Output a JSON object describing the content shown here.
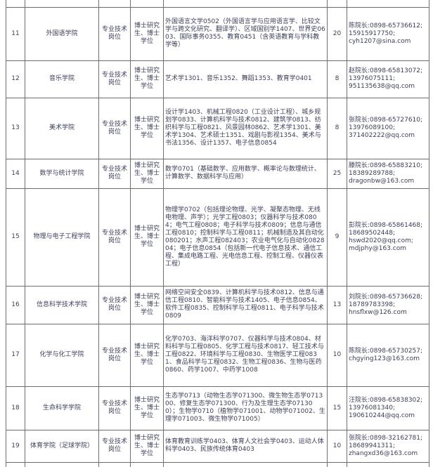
{
  "colors": {
    "border": "#6f6f6f",
    "text": "#3b3f58"
  },
  "table": {
    "rows": [
      {
        "no": "11",
        "college": "外国语学院",
        "position": "专业技术岗位",
        "degree": "博士研究生、博士学位",
        "majors": "外国语言文学0502（外国语言学与应用语言学、比较文学与跨文化研究、翻译学）、区域国别学1407、世界史0603、国际事务0355、教育0451（含英语教育与学科教学等）",
        "count": "20",
        "contact": "陈院长:0898-65736612;\n15915917750;\ncyh1207@sina.com"
      },
      {
        "no": "12",
        "college": "音乐学院",
        "position": "专业技术岗位",
        "degree": "博士研究生、博士学位",
        "majors": "艺术学1301、音乐1352、舞蹈1353、教育学0401",
        "count": "8",
        "contact": "赵院长:0898-65813072;\n13976075111;\n951135638@qq.com"
      },
      {
        "no": "13",
        "college": "美术学院",
        "position": "专业技术岗位",
        "degree": "博士研究生、博士学位",
        "majors": "设计学1403、机械工程0820（工业设计工程）、城乡规划学0833、计算机科学与技术0812、建筑学0813、纺织科学与工程0821、风景园林0862、艺术学1301、美术学1304、艺术硕士1351、戏剧与影视1354、美术与书法1356、设计1357、电子信息0854",
        "count": "8",
        "contact": "张院长:0898-65727610;\n13976089100;\n371402222@qq.com"
      },
      {
        "no": "14",
        "college": "数学与统计学院",
        "position": "专业技术岗位",
        "degree": "博士研究生、博士学位",
        "majors": "数学0701（基础数学、应用数学、概率论与数理统计、计算数学、数据科学与应用）",
        "count": "25",
        "contact": "滕院长:0898-65883210;\n18389289788;\ndragonbw@163.com"
      },
      {
        "no": "15",
        "college": "物理与电子工程学院",
        "position": "专业技术岗位",
        "degree": "博士研究生、博士学位",
        "majors": "物理学0702（包括理论物理、光学、凝聚态物理、无线电物理、声学）；光学工程0803；仪器科学与技术0804；电气工程0808；电子科学与技术0809；信息与通信工程0810；控制科学与工程0811；机械制造及其自动化080201；水声工程082403；农业电气化与自动化082804；电子信息0854（包括新一代电子信息技术、通信工程、集成电路工程、光电信息工程、控制工程、仪器仪表工程）",
        "count": "9",
        "contact": "彭院长:0898-65861468;\n18689502448;\nhswd2020@qq.com;\nmdjphy@163.com"
      },
      {
        "no": "16",
        "college": "信息科学技术学院",
        "position": "专业技术岗位",
        "degree": "博士研究生、博士学位",
        "majors": "网络空间安全0839、计算机科学与技术0812、信息与通信工程0810、智能科学与技术1405、电子信息0854、软件工程0835、控制科学与工程0811、电子科学与技术0809",
        "count": "13",
        "contact": "刘院长:0898-65736628;\n18789783398;\nhnsflxw@126.com"
      },
      {
        "no": "17",
        "college": "化学与化工学院",
        "position": "专业技术岗位",
        "degree": "博士研究生、博士学位",
        "majors": "化学0703、海洋科学0707、仪器科学与技术0804、材料科学与工程0805、化学工程与技术0817、轻工技术与工程0822、环境科学与工程0830、生物医学工程0831、食品科学与工程0832、生物工程0836、生物与医药0860、药学1007、中药学1008",
        "count": "10",
        "contact": "陈院长:0898-65730257;\nchgying123@163.com"
      },
      {
        "no": "18",
        "college": "生命科学学院",
        "position": "专业技术岗位",
        "degree": "博士研究生、博士学位",
        "majors": "生态学0713（动物生态学071300、微生物生态学071300、修复生态学071300、行为及生理生态学071300）；生物学0710（植物学071001、动物学071002、生理学071003、微生物学071005）",
        "count": "15",
        "contact": "汪院长:0898-65838302;\n13976081340;\n190610244@qq.com"
      },
      {
        "no": "19",
        "college": "体育学院（足球学院）",
        "position": "专业技术岗位",
        "degree": "博士研究生、博士学位",
        "majors": "体育教育训练学0403、体育人文社会学0403、运动人体科学0403、民族传统体育0403",
        "count": "10",
        "contact": "张院长:0898-32162781;\n18689941311;\nzhangxd36@163.com"
      }
    ]
  }
}
